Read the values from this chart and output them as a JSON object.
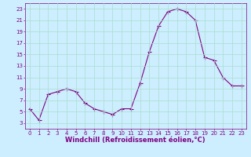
{
  "x": [
    0,
    1,
    2,
    3,
    4,
    5,
    6,
    7,
    8,
    9,
    10,
    11,
    12,
    13,
    14,
    15,
    16,
    17,
    18,
    19,
    20,
    21,
    22,
    23
  ],
  "y": [
    5.5,
    3.5,
    8.0,
    8.5,
    9.0,
    8.5,
    6.5,
    5.5,
    5.0,
    4.5,
    5.5,
    5.5,
    10.0,
    15.5,
    20.0,
    22.5,
    23.0,
    22.5,
    21.0,
    14.5,
    14.0,
    11.0,
    9.5,
    9.5
  ],
  "line_color": "#800080",
  "marker_color": "#800080",
  "bg_color": "#cceeff",
  "grid_color": "#aaddcc",
  "xlabel": "Windchill (Refroidissement éolien,°C)",
  "xlabel_color": "#800080",
  "ylim": [
    2,
    24
  ],
  "xlim": [
    -0.5,
    23.5
  ],
  "yticks": [
    3,
    5,
    7,
    9,
    11,
    13,
    15,
    17,
    19,
    21,
    23
  ],
  "xticks": [
    0,
    1,
    2,
    3,
    4,
    5,
    6,
    7,
    8,
    9,
    10,
    11,
    12,
    13,
    14,
    15,
    16,
    17,
    18,
    19,
    20,
    21,
    22,
    23
  ],
  "tick_color": "#800080",
  "tick_fontsize": 5.0,
  "xlabel_fontsize": 6.0,
  "linewidth": 0.8,
  "markersize": 1.8,
  "spine_color": "#800080"
}
